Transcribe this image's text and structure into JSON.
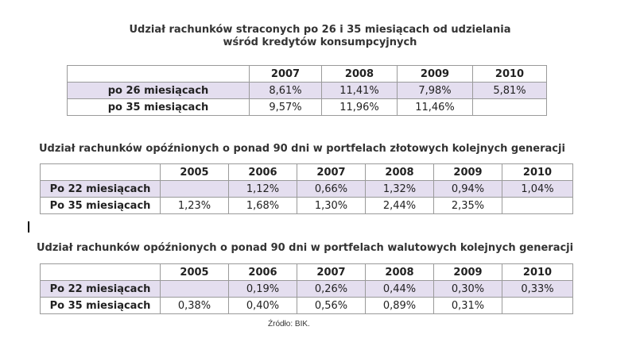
{
  "table1": {
    "title_line1": "Udział rachunków straconych po 26 i 35 miesiącach od udzielania",
    "title_line2": "wśród kredytów konsumpcyjnych",
    "years": [
      "2007",
      "2008",
      "2009",
      "2010"
    ],
    "rows": [
      {
        "label": "po 26 miesiącach",
        "values": [
          "8,61%",
          "11,41%",
          "7,98%",
          "5,81%"
        ]
      },
      {
        "label": "po 35 miesiącach",
        "values": [
          "9,57%",
          "11,96%",
          "11,46%",
          ""
        ]
      }
    ]
  },
  "table2": {
    "title": "Udział rachunków opóźnionych o ponad 90 dni w portfelach złotowych kolejnych generacji",
    "years": [
      "2005",
      "2006",
      "2007",
      "2008",
      "2009",
      "2010"
    ],
    "rows": [
      {
        "label": "Po 22 miesiącach",
        "values": [
          "",
          "1,12%",
          "0,66%",
          "1,32%",
          "0,94%",
          "1,04%"
        ]
      },
      {
        "label": "Po 35 miesiącach",
        "values": [
          "1,23%",
          "1,68%",
          "1,30%",
          "2,44%",
          "2,35%",
          ""
        ]
      }
    ]
  },
  "table3": {
    "title": "Udział rachunków opóźnionych o ponad 90 dni w portfelach walutowych kolejnych generacji",
    "years": [
      "2005",
      "2006",
      "2007",
      "2008",
      "2009",
      "2010"
    ],
    "rows": [
      {
        "label": "Po 22 miesiącach",
        "values": [
          "",
          "0,19%",
          "0,26%",
          "0,44%",
          "0,30%",
          "0,33%"
        ]
      },
      {
        "label": "Po 35 miesiącach",
        "values": [
          "0,38%",
          "0,40%",
          "0,56%",
          "0,89%",
          "0,31%",
          ""
        ]
      }
    ]
  },
  "source": "Źródło: BIK.",
  "colors": {
    "row_shade": "#e4deef",
    "border": "#9a9a9a"
  }
}
